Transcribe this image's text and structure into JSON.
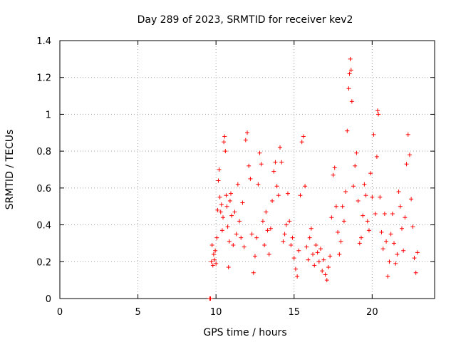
{
  "chart_data": {
    "type": "scatter",
    "title": "Day 289 of 2023, SRMTID for receiver kev2",
    "xlabel": "GPS time / hours",
    "ylabel": "SRMTID / TECUs",
    "xlim": [
      0,
      24
    ],
    "ylim": [
      0,
      1.4
    ],
    "xticks": [
      "0",
      "5",
      "10",
      "15",
      "20"
    ],
    "yticks": [
      "0",
      "0.2",
      "0.4",
      "0.6",
      "0.8",
      "1",
      "1.2",
      "1.4"
    ],
    "grid": true,
    "marker": "+",
    "series": [
      {
        "name": "SRMTID",
        "color": "#ff0000",
        "points": [
          [
            9.6,
            0.0
          ],
          [
            9.65,
            0.0
          ],
          [
            9.7,
            0.2
          ],
          [
            9.75,
            0.29
          ],
          [
            9.8,
            0.18
          ],
          [
            9.85,
            0.24
          ],
          [
            9.9,
            0.21
          ],
          [
            9.95,
            0.26
          ],
          [
            10.0,
            0.19
          ],
          [
            10.05,
            0.33
          ],
          [
            10.1,
            0.48
          ],
          [
            10.15,
            0.64
          ],
          [
            10.2,
            0.7
          ],
          [
            10.25,
            0.55
          ],
          [
            10.3,
            0.47
          ],
          [
            10.35,
            0.51
          ],
          [
            10.4,
            0.37
          ],
          [
            10.45,
            0.44
          ],
          [
            10.5,
            0.85
          ],
          [
            10.55,
            0.88
          ],
          [
            10.6,
            0.8
          ],
          [
            10.65,
            0.56
          ],
          [
            10.7,
            0.5
          ],
          [
            10.75,
            0.39
          ],
          [
            10.8,
            0.17
          ],
          [
            10.85,
            0.31
          ],
          [
            10.9,
            0.53
          ],
          [
            10.95,
            0.57
          ],
          [
            11.0,
            0.45
          ],
          [
            11.1,
            0.29
          ],
          [
            11.2,
            0.47
          ],
          [
            11.3,
            0.35
          ],
          [
            11.4,
            0.62
          ],
          [
            11.5,
            0.42
          ],
          [
            11.6,
            0.33
          ],
          [
            11.7,
            0.52
          ],
          [
            11.8,
            0.28
          ],
          [
            11.9,
            0.86
          ],
          [
            12.0,
            0.9
          ],
          [
            12.1,
            0.72
          ],
          [
            12.2,
            0.65
          ],
          [
            12.3,
            0.35
          ],
          [
            12.4,
            0.14
          ],
          [
            12.5,
            0.23
          ],
          [
            12.6,
            0.33
          ],
          [
            12.7,
            0.62
          ],
          [
            12.8,
            0.79
          ],
          [
            12.9,
            0.73
          ],
          [
            13.0,
            0.42
          ],
          [
            13.1,
            0.29
          ],
          [
            13.2,
            0.47
          ],
          [
            13.3,
            0.37
          ],
          [
            13.4,
            0.24
          ],
          [
            13.5,
            0.38
          ],
          [
            13.6,
            0.53
          ],
          [
            13.7,
            0.69
          ],
          [
            13.8,
            0.74
          ],
          [
            13.9,
            0.61
          ],
          [
            14.0,
            0.56
          ],
          [
            14.1,
            0.82
          ],
          [
            14.2,
            0.74
          ],
          [
            14.3,
            0.31
          ],
          [
            14.4,
            0.35
          ],
          [
            14.5,
            0.4
          ],
          [
            14.6,
            0.57
          ],
          [
            14.7,
            0.42
          ],
          [
            14.8,
            0.29
          ],
          [
            14.9,
            0.33
          ],
          [
            15.0,
            0.22
          ],
          [
            15.1,
            0.16
          ],
          [
            15.2,
            0.12
          ],
          [
            15.3,
            0.26
          ],
          [
            15.4,
            0.56
          ],
          [
            15.5,
            0.85
          ],
          [
            15.6,
            0.88
          ],
          [
            15.7,
            0.61
          ],
          [
            15.8,
            0.28
          ],
          [
            15.9,
            0.21
          ],
          [
            16.0,
            0.33
          ],
          [
            16.1,
            0.38
          ],
          [
            16.2,
            0.24
          ],
          [
            16.3,
            0.18
          ],
          [
            16.4,
            0.29
          ],
          [
            16.5,
            0.25
          ],
          [
            16.6,
            0.2
          ],
          [
            16.7,
            0.27
          ],
          [
            16.8,
            0.15
          ],
          [
            16.9,
            0.21
          ],
          [
            17.0,
            0.13
          ],
          [
            17.1,
            0.1
          ],
          [
            17.2,
            0.17
          ],
          [
            17.3,
            0.23
          ],
          [
            17.4,
            0.44
          ],
          [
            17.5,
            0.67
          ],
          [
            17.6,
            0.71
          ],
          [
            17.7,
            0.5
          ],
          [
            17.8,
            0.36
          ],
          [
            17.9,
            0.24
          ],
          [
            18.0,
            0.31
          ],
          [
            18.1,
            0.5
          ],
          [
            18.2,
            0.42
          ],
          [
            18.3,
            0.58
          ],
          [
            18.4,
            0.91
          ],
          [
            18.5,
            1.14
          ],
          [
            18.55,
            1.22
          ],
          [
            18.6,
            1.3
          ],
          [
            18.65,
            1.24
          ],
          [
            18.7,
            1.07
          ],
          [
            18.8,
            0.61
          ],
          [
            18.9,
            0.72
          ],
          [
            19.0,
            0.79
          ],
          [
            19.1,
            0.53
          ],
          [
            19.2,
            0.3
          ],
          [
            19.3,
            0.33
          ],
          [
            19.4,
            0.45
          ],
          [
            19.5,
            0.62
          ],
          [
            19.6,
            0.56
          ],
          [
            19.7,
            0.42
          ],
          [
            19.8,
            0.37
          ],
          [
            19.9,
            0.68
          ],
          [
            20.0,
            0.55
          ],
          [
            20.1,
            0.89
          ],
          [
            20.2,
            0.46
          ],
          [
            20.3,
            0.77
          ],
          [
            20.35,
            1.02
          ],
          [
            20.4,
            1.0
          ],
          [
            20.5,
            0.55
          ],
          [
            20.6,
            0.36
          ],
          [
            20.7,
            0.27
          ],
          [
            20.8,
            0.46
          ],
          [
            20.9,
            0.31
          ],
          [
            21.0,
            0.12
          ],
          [
            21.1,
            0.2
          ],
          [
            21.2,
            0.35
          ],
          [
            21.3,
            0.46
          ],
          [
            21.4,
            0.3
          ],
          [
            21.5,
            0.19
          ],
          [
            21.6,
            0.24
          ],
          [
            21.7,
            0.58
          ],
          [
            21.8,
            0.5
          ],
          [
            21.9,
            0.38
          ],
          [
            22.0,
            0.26
          ],
          [
            22.1,
            0.44
          ],
          [
            22.2,
            0.73
          ],
          [
            22.3,
            0.89
          ],
          [
            22.4,
            0.78
          ],
          [
            22.5,
            0.54
          ],
          [
            22.6,
            0.39
          ],
          [
            22.7,
            0.22
          ],
          [
            22.8,
            0.14
          ],
          [
            22.9,
            0.25
          ]
        ]
      }
    ]
  }
}
